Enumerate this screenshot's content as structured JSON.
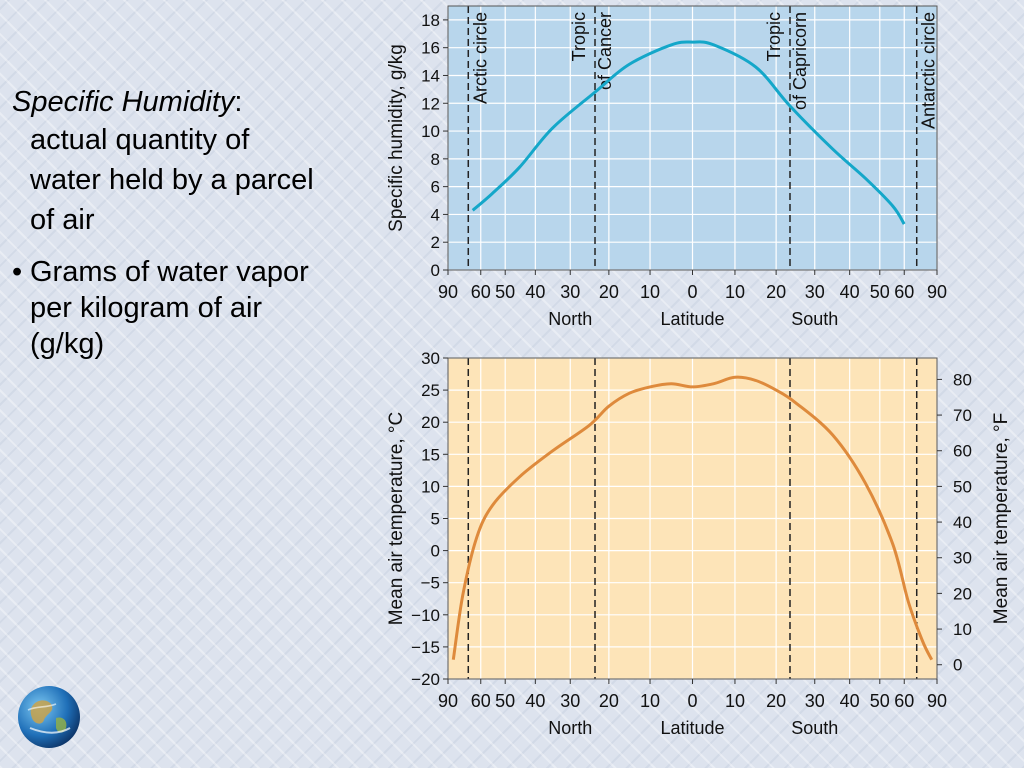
{
  "slide": {
    "term": "Specific Humidity",
    "term_suffix": ":",
    "definition_lines": [
      "actual quantity of",
      "water held by a parcel",
      "of air"
    ],
    "bullet_marker": "•",
    "bullet_lines": [
      "Grams of water vapor",
      "per kilogram of air",
      "(g/kg)"
    ],
    "logo_icon": "earth-globe-icon"
  },
  "chart_data": [
    {
      "type": "line",
      "xlabel": "Latitude",
      "ylabel": "Specific humidity, g/kg",
      "x_tick_labels": [
        "90",
        "60",
        "50",
        "40",
        "30",
        "20",
        "10",
        "0",
        "10",
        "20",
        "30",
        "40",
        "50",
        "60",
        "90"
      ],
      "x_tick_values": [
        -90,
        -60,
        -50,
        -40,
        -30,
        -20,
        -10,
        0,
        10,
        20,
        30,
        40,
        50,
        60,
        90
      ],
      "x_scale": "sine of latitude",
      "hemisphere_labels": [
        "North",
        "South"
      ],
      "ylim": [
        0,
        19
      ],
      "y_ticks": [
        0,
        2,
        4,
        6,
        8,
        10,
        12,
        14,
        16,
        18
      ],
      "grid": true,
      "background_color": "#b8d6ec",
      "line_color": "#14a7c9",
      "reference_lines": [
        {
          "label": "Arctic circle",
          "x": -66.5
        },
        {
          "label": "Tropic\nof Cancer",
          "x": -23.5
        },
        {
          "label": "Tropic\nof Capricorn",
          "x": 23.5
        },
        {
          "label": "Antarctic circle",
          "x": 66.5
        }
      ],
      "series": [
        {
          "x": [
            -64,
            -55,
            -45,
            -35,
            -23.5,
            -15,
            -5,
            0,
            5,
            15,
            23.5,
            35,
            45,
            55,
            60
          ],
          "y": [
            4.3,
            5.5,
            7.4,
            10.2,
            12.8,
            14.8,
            16.2,
            16.4,
            16.2,
            14.6,
            11.8,
            8.7,
            6.6,
            4.6,
            3.3
          ]
        }
      ]
    },
    {
      "type": "line",
      "xlabel": "Latitude",
      "ylabel": "Mean air temperature, °C",
      "ylabel_right": "Mean air temperature, °F",
      "x_tick_labels": [
        "90",
        "60",
        "50",
        "40",
        "30",
        "20",
        "10",
        "0",
        "10",
        "20",
        "30",
        "40",
        "50",
        "60",
        "90"
      ],
      "x_tick_values": [
        -90,
        -60,
        -50,
        -40,
        -30,
        -20,
        -10,
        0,
        10,
        20,
        30,
        40,
        50,
        60,
        90
      ],
      "x_scale": "sine of latitude",
      "hemisphere_labels": [
        "North",
        "South"
      ],
      "ylim": [
        -20,
        30
      ],
      "y_ticks": [
        -20,
        -15,
        -10,
        -5,
        0,
        5,
        10,
        15,
        20,
        25,
        30
      ],
      "y_tick_labels": [
        "−20",
        "−15",
        "−10",
        "−5",
        "0",
        "5",
        "10",
        "15",
        "20",
        "25",
        "30"
      ],
      "y_right_ticks_f": [
        0,
        10,
        20,
        30,
        40,
        50,
        60,
        70,
        80
      ],
      "grid": true,
      "background_color": "#fde4b8",
      "line_color": "#de8a3c",
      "reference_lines": [
        {
          "label": "",
          "x": -66.5
        },
        {
          "label": "",
          "x": -23.5
        },
        {
          "label": "",
          "x": 23.5
        },
        {
          "label": "",
          "x": 66.5
        }
      ],
      "series": [
        {
          "x": [
            -78,
            -70,
            -62,
            -55,
            -45,
            -35,
            -25,
            -20,
            -15,
            -10,
            -5,
            0,
            5,
            10,
            15,
            20,
            25,
            35,
            45,
            55,
            62,
            70,
            78
          ],
          "y": [
            -17,
            -7,
            2,
            7,
            11.5,
            15.5,
            19.5,
            22.5,
            24.5,
            25.5,
            26,
            25.5,
            26,
            27,
            26.5,
            25,
            23,
            18,
            10.5,
            1,
            -8,
            -14,
            -17
          ]
        }
      ]
    }
  ]
}
